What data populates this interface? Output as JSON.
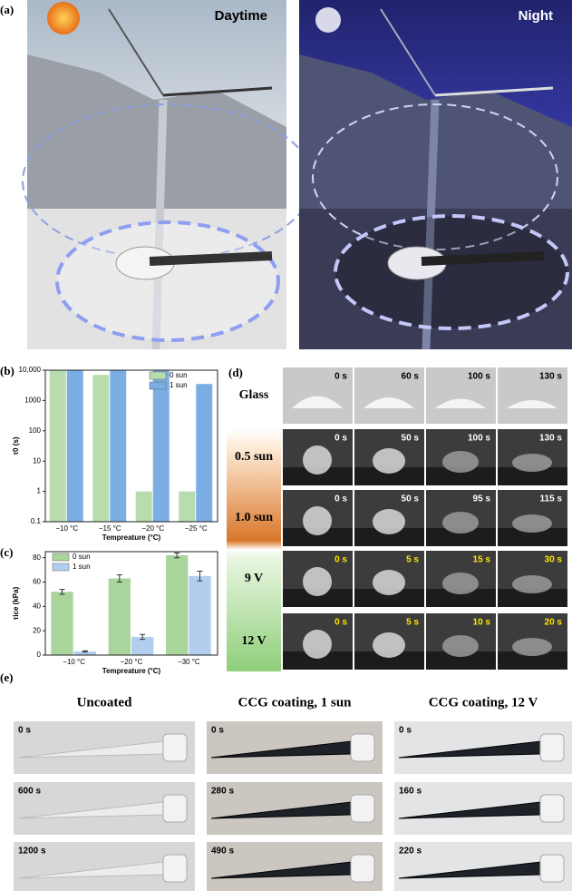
{
  "panel_labels": [
    "(a)",
    "(b)",
    "(c)",
    "(d)",
    "(e)"
  ],
  "panel_a": {
    "left_label": "Daytime",
    "right_label": "Night"
  },
  "chart_data": [
    {
      "type": "bar",
      "log_scale": true,
      "y_label": "τ0 (s)",
      "x_label": "Tempreature (°C)",
      "categories": [
        "−10 °C",
        "−15 °C",
        "−20 °C",
        "−25 °C"
      ],
      "series": [
        {
          "name": "0 sun",
          "color": "#b8dcae",
          "values": [
            10000,
            7000,
            1,
            1
          ]
        },
        {
          "name": "1 sun",
          "color": "#7aaee4",
          "values": [
            10000,
            10000,
            10000,
            3500
          ]
        }
      ],
      "ylim": [
        0.1,
        10000
      ],
      "yticks": [
        0.1,
        1,
        10,
        100,
        1000,
        {
          "value": 10000,
          "label": "10,000"
        }
      ],
      "legend": "upper-right"
    },
    {
      "type": "bar",
      "log_scale": false,
      "y_label": "τice (kPa)",
      "x_label": "Tempreature (°C)",
      "categories": [
        "−10 °C",
        "−20 °C",
        "−30 °C"
      ],
      "series": [
        {
          "name": "0 sun",
          "color": "#a9d49c",
          "values": [
            52,
            63,
            82
          ],
          "errors": [
            2,
            3,
            2
          ]
        },
        {
          "name": "1 sun",
          "color": "#b3cdee",
          "values": [
            3,
            15,
            65
          ],
          "errors": [
            0.5,
            2,
            4
          ]
        }
      ],
      "ylim": [
        0,
        85
      ],
      "yticks": [
        0,
        20,
        40,
        60,
        80
      ],
      "legend": "upper-left"
    }
  ],
  "panel_d": {
    "rows": [
      {
        "label": "Glass",
        "times": [
          "0 s",
          "60 s",
          "100 s",
          "130 s"
        ]
      },
      {
        "label": "0.5 sun",
        "times": [
          "0 s",
          "50 s",
          "100 s",
          "130 s"
        ]
      },
      {
        "label": "1.0 sun",
        "times": [
          "0 s",
          "50 s",
          "95 s",
          "115 s"
        ]
      },
      {
        "label": "9 V",
        "times": [
          "0 s",
          "5 s",
          "15 s",
          "30 s"
        ]
      },
      {
        "label": "12 V",
        "times": [
          "0 s",
          "5 s",
          "10 s",
          "20 s"
        ]
      }
    ]
  },
  "panel_e": {
    "columns": [
      {
        "title": "Uncoated",
        "times": [
          "0 s",
          "600 s",
          "1200 s"
        ]
      },
      {
        "title": "CCG coating, 1 sun",
        "times": [
          "0 s",
          "280 s",
          "490 s"
        ]
      },
      {
        "title": "CCG coating, 12 V",
        "times": [
          "0 s",
          "160 s",
          "220 s"
        ]
      }
    ]
  }
}
